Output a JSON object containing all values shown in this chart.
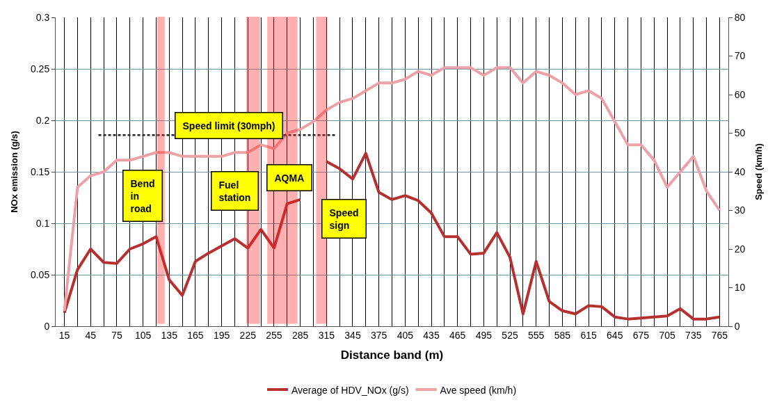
{
  "chart_data": {
    "type": "line",
    "xlabel": "Distance band (m)",
    "ylabel": "NOx emission (g/s)",
    "y2label": "Speed (km/h)",
    "x": [
      15,
      30,
      45,
      60,
      75,
      90,
      105,
      120,
      135,
      150,
      165,
      180,
      195,
      210,
      225,
      240,
      255,
      270,
      285,
      300,
      315,
      330,
      345,
      360,
      375,
      390,
      405,
      420,
      435,
      450,
      465,
      480,
      495,
      510,
      525,
      540,
      555,
      570,
      585,
      600,
      615,
      630,
      645,
      660,
      675,
      690,
      705,
      720,
      735,
      750,
      765
    ],
    "series": [
      {
        "name": "Average of HDV_NOx (g/s)",
        "color": "#b5302f",
        "values": [
          0.013,
          0.055,
          0.075,
          0.062,
          0.061,
          0.075,
          0.08,
          0.087,
          0.045,
          0.03,
          0.063,
          0.071,
          0.078,
          0.085,
          0.076,
          0.094,
          0.076,
          0.119,
          0.123,
          null,
          0.16,
          0.153,
          0.143,
          0.168,
          0.13,
          0.123,
          0.127,
          0.122,
          0.11,
          0.087,
          0.087,
          0.07,
          0.071,
          0.091,
          0.067,
          0.012,
          0.063,
          0.024,
          0.015,
          0.012,
          0.02,
          0.019,
          0.009,
          0.007,
          0.008,
          0.009,
          0.01,
          0.017,
          0.007,
          0.007,
          0.009
        ]
      },
      {
        "name": "Ave speed (km/h)",
        "color": "#eda0a6",
        "axis": "y2",
        "values": [
          4,
          36,
          39,
          40,
          43,
          43,
          44,
          45,
          45,
          44,
          44,
          44,
          44,
          45,
          45,
          47,
          46,
          50,
          51,
          53,
          56,
          58,
          59,
          61,
          63,
          63,
          64,
          66,
          65,
          67,
          67,
          67,
          65,
          67,
          67,
          63,
          66,
          65,
          63,
          60,
          61,
          59,
          53,
          47,
          47,
          43,
          36,
          40,
          44,
          35,
          30
        ]
      },
      {
        "color": "#222222",
        "axis": "y2",
        "line_style": "dashed",
        "x": [
          54,
          325
        ],
        "values": [
          49.5,
          49.5
        ]
      }
    ],
    "xlim": [
      5,
      775
    ],
    "xticks": [
      15,
      {
        "value": 30,
        "label": null
      },
      45,
      {
        "value": 60,
        "label": null
      },
      75,
      {
        "value": 90,
        "label": null
      },
      105,
      {
        "value": 120,
        "label": null
      },
      135,
      {
        "value": 150,
        "label": null
      },
      165,
      {
        "value": 180,
        "label": null
      },
      195,
      {
        "value": 210,
        "label": null
      },
      225,
      {
        "value": 240,
        "label": null
      },
      255,
      {
        "value": 270,
        "label": null
      },
      285,
      {
        "value": 300,
        "label": null
      },
      315,
      {
        "value": 330,
        "label": null
      },
      345,
      {
        "value": 360,
        "label": null
      },
      375,
      {
        "value": 390,
        "label": null
      },
      405,
      {
        "value": 420,
        "label": null
      },
      435,
      {
        "value": 450,
        "label": null
      },
      465,
      {
        "value": 480,
        "label": null
      },
      495,
      {
        "value": 510,
        "label": null
      },
      525,
      {
        "value": 540,
        "label": null
      },
      555,
      {
        "value": 570,
        "label": null
      },
      585,
      {
        "value": 600,
        "label": null
      },
      615,
      {
        "value": 630,
        "label": null
      },
      645,
      {
        "value": 660,
        "label": null
      },
      675,
      {
        "value": 690,
        "label": null
      },
      705,
      {
        "value": 720,
        "label": null
      },
      735,
      {
        "value": 750,
        "label": null
      },
      765
    ],
    "ylim": [
      0,
      0.3
    ],
    "yticks": [
      0,
      0.05,
      0.1,
      0.15,
      0.2,
      0.25,
      0.3
    ],
    "y2lim": [
      0,
      80
    ],
    "y2ticks": [
      0,
      10,
      20,
      30,
      40,
      50,
      60,
      70,
      80
    ],
    "bands": [
      {
        "axis": "x",
        "from": 122,
        "to": 129,
        "color": "#ff2020"
      },
      {
        "axis": "x",
        "from": 224,
        "to": 238,
        "color": "#ff2020"
      },
      {
        "axis": "x",
        "from": 248,
        "to": 281,
        "color": "#ff2020"
      },
      {
        "axis": "x",
        "from": 304,
        "to": 315,
        "color": "#ff2020"
      }
    ],
    "annotations": [
      "Speed limit (30mph)",
      "Bend\nin\nroad",
      "Fuel\nstation",
      "AQMA",
      "Speed\nsign"
    ],
    "grid": true,
    "legend": "bottom",
    "marker": "none"
  }
}
